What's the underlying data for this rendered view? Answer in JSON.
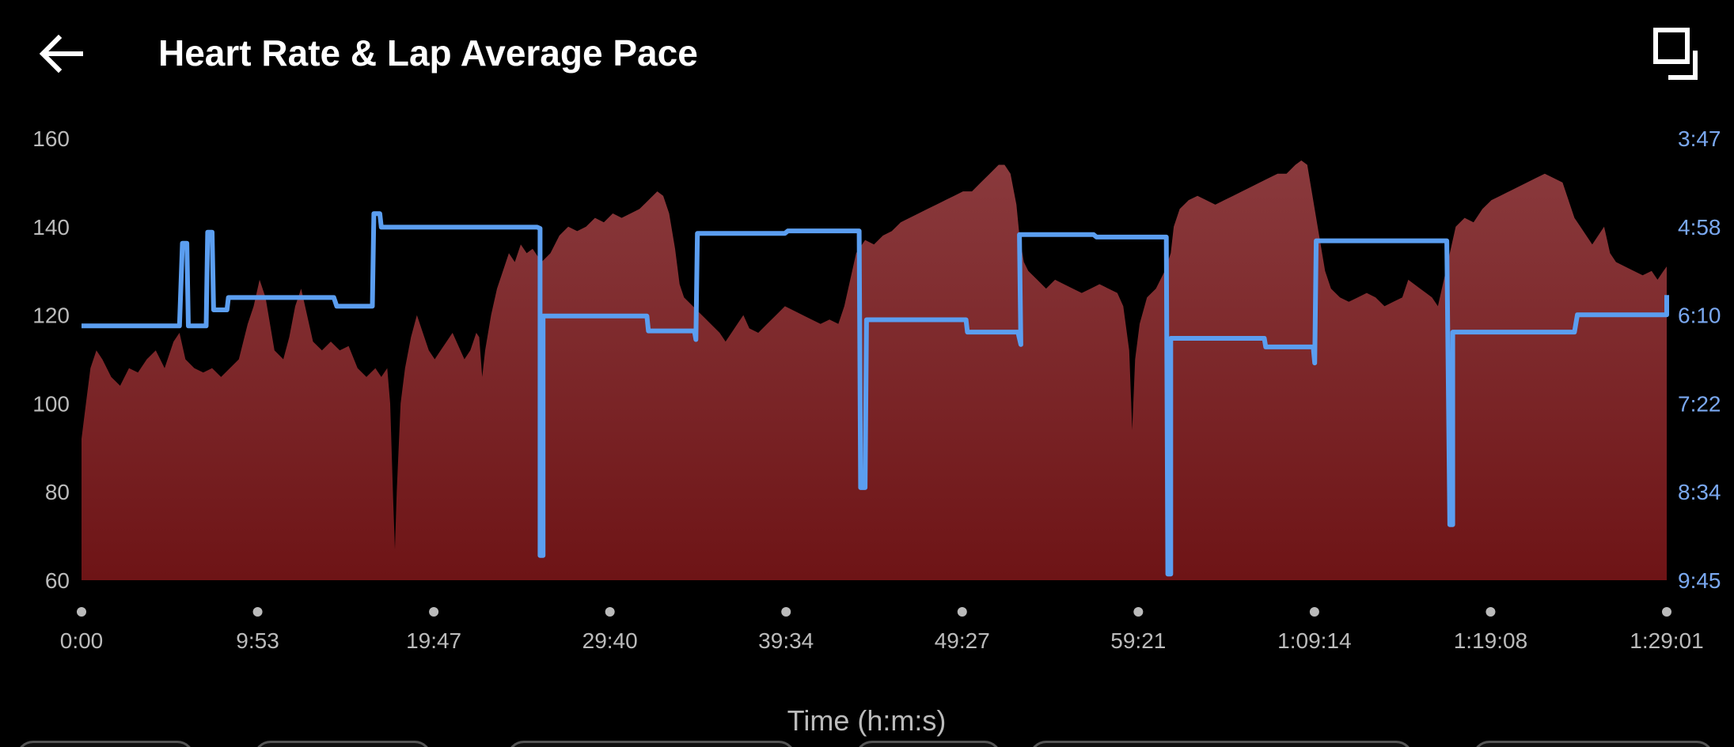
{
  "header": {
    "title": "Heart Rate & Lap Average Pace",
    "back_icon": "arrow-left-icon",
    "fullscreen_icon": "fullscreen-icon"
  },
  "colors": {
    "background": "#000000",
    "heart_rate_fill_top": "#8a3a3d",
    "heart_rate_fill_bottom": "#6e1416",
    "pace_line": "#5b9ef0",
    "left_axis_text": "#bbbbbb",
    "right_axis_text": "#7aa8f0"
  },
  "chart_data": {
    "type": "area",
    "xlabel": "Time (h:m:s)",
    "x_ticks": [
      "0:00",
      "9:53",
      "19:47",
      "29:40",
      "39:34",
      "49:27",
      "59:21",
      "1:09:14",
      "1:19:08",
      "1:29:01"
    ],
    "x_range_seconds": [
      0,
      5341
    ],
    "y_left": {
      "range": [
        60,
        160
      ],
      "ticks": [
        "60",
        "80",
        "100",
        "120",
        "140",
        "160"
      ]
    },
    "y_right": {
      "range_seconds": [
        227,
        585
      ],
      "ticks": [
        "9:45",
        "8:34",
        "7:22",
        "6:10",
        "4:58",
        "3:47"
      ]
    },
    "series": [
      {
        "type": "area",
        "axis": "left",
        "points": [
          [
            0,
            92
          ],
          [
            15,
            100
          ],
          [
            30,
            108
          ],
          [
            50,
            112
          ],
          [
            70,
            110
          ],
          [
            100,
            106
          ],
          [
            130,
            104
          ],
          [
            160,
            108
          ],
          [
            190,
            107
          ],
          [
            220,
            110
          ],
          [
            250,
            112
          ],
          [
            280,
            108
          ],
          [
            310,
            114
          ],
          [
            330,
            116
          ],
          [
            350,
            110
          ],
          [
            380,
            108
          ],
          [
            410,
            107
          ],
          [
            440,
            108
          ],
          [
            470,
            106
          ],
          [
            500,
            108
          ],
          [
            530,
            110
          ],
          [
            560,
            118
          ],
          [
            580,
            122
          ],
          [
            600,
            128
          ],
          [
            620,
            124
          ],
          [
            650,
            112
          ],
          [
            680,
            110
          ],
          [
            700,
            115
          ],
          [
            720,
            122
          ],
          [
            740,
            126
          ],
          [
            760,
            120
          ],
          [
            780,
            114
          ],
          [
            810,
            112
          ],
          [
            840,
            114
          ],
          [
            870,
            112
          ],
          [
            900,
            113
          ],
          [
            930,
            108
          ],
          [
            960,
            106
          ],
          [
            990,
            108
          ],
          [
            1010,
            106
          ],
          [
            1030,
            108
          ],
          [
            1040,
            100
          ],
          [
            1050,
            78
          ],
          [
            1056,
            67
          ],
          [
            1062,
            80
          ],
          [
            1075,
            100
          ],
          [
            1090,
            108
          ],
          [
            1110,
            115
          ],
          [
            1130,
            120
          ],
          [
            1150,
            116
          ],
          [
            1170,
            112
          ],
          [
            1190,
            110
          ],
          [
            1210,
            112
          ],
          [
            1230,
            114
          ],
          [
            1250,
            116
          ],
          [
            1270,
            113
          ],
          [
            1290,
            110
          ],
          [
            1310,
            112
          ],
          [
            1330,
            116
          ],
          [
            1340,
            115
          ],
          [
            1350,
            106
          ],
          [
            1360,
            112
          ],
          [
            1380,
            120
          ],
          [
            1400,
            126
          ],
          [
            1420,
            130
          ],
          [
            1440,
            134
          ],
          [
            1460,
            132
          ],
          [
            1480,
            136
          ],
          [
            1500,
            134
          ],
          [
            1520,
            135
          ],
          [
            1550,
            132
          ],
          [
            1580,
            134
          ],
          [
            1610,
            138
          ],
          [
            1640,
            140
          ],
          [
            1670,
            139
          ],
          [
            1700,
            140
          ],
          [
            1730,
            142
          ],
          [
            1760,
            141
          ],
          [
            1790,
            143
          ],
          [
            1820,
            142
          ],
          [
            1850,
            143
          ],
          [
            1880,
            144
          ],
          [
            1910,
            146
          ],
          [
            1940,
            148
          ],
          [
            1960,
            147
          ],
          [
            1980,
            143
          ],
          [
            2000,
            135
          ],
          [
            2015,
            127
          ],
          [
            2030,
            124
          ],
          [
            2060,
            122
          ],
          [
            2090,
            120
          ],
          [
            2120,
            118
          ],
          [
            2150,
            116
          ],
          [
            2170,
            114
          ],
          [
            2190,
            116
          ],
          [
            2210,
            118
          ],
          [
            2230,
            120
          ],
          [
            2250,
            117
          ],
          [
            2280,
            116
          ],
          [
            2310,
            118
          ],
          [
            2340,
            120
          ],
          [
            2370,
            122
          ],
          [
            2400,
            121
          ],
          [
            2430,
            120
          ],
          [
            2460,
            119
          ],
          [
            2490,
            118
          ],
          [
            2520,
            119
          ],
          [
            2550,
            118
          ],
          [
            2570,
            122
          ],
          [
            2590,
            128
          ],
          [
            2610,
            134
          ],
          [
            2640,
            137
          ],
          [
            2670,
            136
          ],
          [
            2700,
            138
          ],
          [
            2730,
            139
          ],
          [
            2760,
            141
          ],
          [
            2790,
            142
          ],
          [
            2820,
            143
          ],
          [
            2850,
            144
          ],
          [
            2880,
            145
          ],
          [
            2910,
            146
          ],
          [
            2940,
            147
          ],
          [
            2970,
            148
          ],
          [
            3000,
            148
          ],
          [
            3030,
            150
          ],
          [
            3060,
            152
          ],
          [
            3090,
            154
          ],
          [
            3110,
            154
          ],
          [
            3130,
            152
          ],
          [
            3150,
            145
          ],
          [
            3160,
            138
          ],
          [
            3175,
            132
          ],
          [
            3190,
            130
          ],
          [
            3220,
            128
          ],
          [
            3250,
            126
          ],
          [
            3280,
            128
          ],
          [
            3310,
            127
          ],
          [
            3340,
            126
          ],
          [
            3370,
            125
          ],
          [
            3400,
            126
          ],
          [
            3430,
            127
          ],
          [
            3460,
            126
          ],
          [
            3490,
            125
          ],
          [
            3510,
            122
          ],
          [
            3530,
            112
          ],
          [
            3540,
            94
          ],
          [
            3550,
            110
          ],
          [
            3565,
            118
          ],
          [
            3590,
            124
          ],
          [
            3620,
            126
          ],
          [
            3650,
            130
          ],
          [
            3670,
            134
          ],
          [
            3680,
            140
          ],
          [
            3700,
            144
          ],
          [
            3730,
            146
          ],
          [
            3760,
            147
          ],
          [
            3790,
            146
          ],
          [
            3820,
            145
          ],
          [
            3850,
            146
          ],
          [
            3880,
            147
          ],
          [
            3910,
            148
          ],
          [
            3940,
            149
          ],
          [
            3970,
            150
          ],
          [
            4000,
            151
          ],
          [
            4030,
            152
          ],
          [
            4060,
            152
          ],
          [
            4090,
            154
          ],
          [
            4110,
            155
          ],
          [
            4130,
            154
          ],
          [
            4150,
            146
          ],
          [
            4170,
            138
          ],
          [
            4190,
            130
          ],
          [
            4210,
            126
          ],
          [
            4240,
            124
          ],
          [
            4270,
            123
          ],
          [
            4300,
            124
          ],
          [
            4330,
            125
          ],
          [
            4360,
            124
          ],
          [
            4390,
            122
          ],
          [
            4420,
            123
          ],
          [
            4450,
            124
          ],
          [
            4470,
            128
          ],
          [
            4490,
            127
          ],
          [
            4510,
            126
          ],
          [
            4530,
            125
          ],
          [
            4550,
            124
          ],
          [
            4570,
            122
          ],
          [
            4590,
            128
          ],
          [
            4610,
            134
          ],
          [
            4630,
            140
          ],
          [
            4660,
            142
          ],
          [
            4690,
            141
          ],
          [
            4720,
            144
          ],
          [
            4750,
            146
          ],
          [
            4780,
            147
          ],
          [
            4810,
            148
          ],
          [
            4840,
            149
          ],
          [
            4870,
            150
          ],
          [
            4900,
            151
          ],
          [
            4930,
            152
          ],
          [
            4960,
            151
          ],
          [
            4990,
            150
          ],
          [
            5010,
            146
          ],
          [
            5030,
            142
          ],
          [
            5050,
            140
          ],
          [
            5070,
            138
          ],
          [
            5090,
            136
          ],
          [
            5110,
            138
          ],
          [
            5130,
            140
          ],
          [
            5150,
            134
          ],
          [
            5170,
            132
          ],
          [
            5200,
            131
          ],
          [
            5230,
            130
          ],
          [
            5260,
            129
          ],
          [
            5290,
            130
          ],
          [
            5310,
            128
          ],
          [
            5330,
            130
          ],
          [
            5341,
            131
          ]
        ]
      },
      {
        "type": "step-line",
        "axis": "right",
        "points": [
          [
            0,
            379
          ],
          [
            330,
            379
          ],
          [
            340,
            312
          ],
          [
            355,
            312
          ],
          [
            360,
            379
          ],
          [
            420,
            379
          ],
          [
            425,
            303
          ],
          [
            440,
            303
          ],
          [
            445,
            366
          ],
          [
            490,
            366
          ],
          [
            495,
            356
          ],
          [
            850,
            356
          ],
          [
            860,
            363
          ],
          [
            980,
            363
          ],
          [
            985,
            288
          ],
          [
            1005,
            288
          ],
          [
            1010,
            299
          ],
          [
            1535,
            299
          ],
          [
            1545,
            300
          ],
          [
            1545,
            565
          ],
          [
            1555,
            565
          ],
          [
            1555,
            371
          ],
          [
            1905,
            371
          ],
          [
            1910,
            383
          ],
          [
            2065,
            383
          ],
          [
            2070,
            390
          ],
          [
            2075,
            304
          ],
          [
            2370,
            304
          ],
          [
            2380,
            302
          ],
          [
            2620,
            302
          ],
          [
            2625,
            510
          ],
          [
            2640,
            510
          ],
          [
            2645,
            374
          ],
          [
            2980,
            374
          ],
          [
            2985,
            384
          ],
          [
            3155,
            384
          ],
          [
            3165,
            394
          ],
          [
            3160,
            305
          ],
          [
            3410,
            305
          ],
          [
            3420,
            307
          ],
          [
            3655,
            307
          ],
          [
            3660,
            580
          ],
          [
            3670,
            580
          ],
          [
            3670,
            389
          ],
          [
            3985,
            389
          ],
          [
            3990,
            396
          ],
          [
            4150,
            396
          ],
          [
            4155,
            409
          ],
          [
            4160,
            310
          ],
          [
            4600,
            310
          ],
          [
            4610,
            540
          ],
          [
            4620,
            540
          ],
          [
            4620,
            384
          ],
          [
            5030,
            384
          ],
          [
            5040,
            370
          ],
          [
            5341,
            370
          ],
          [
            5341,
            354
          ]
        ]
      }
    ]
  }
}
